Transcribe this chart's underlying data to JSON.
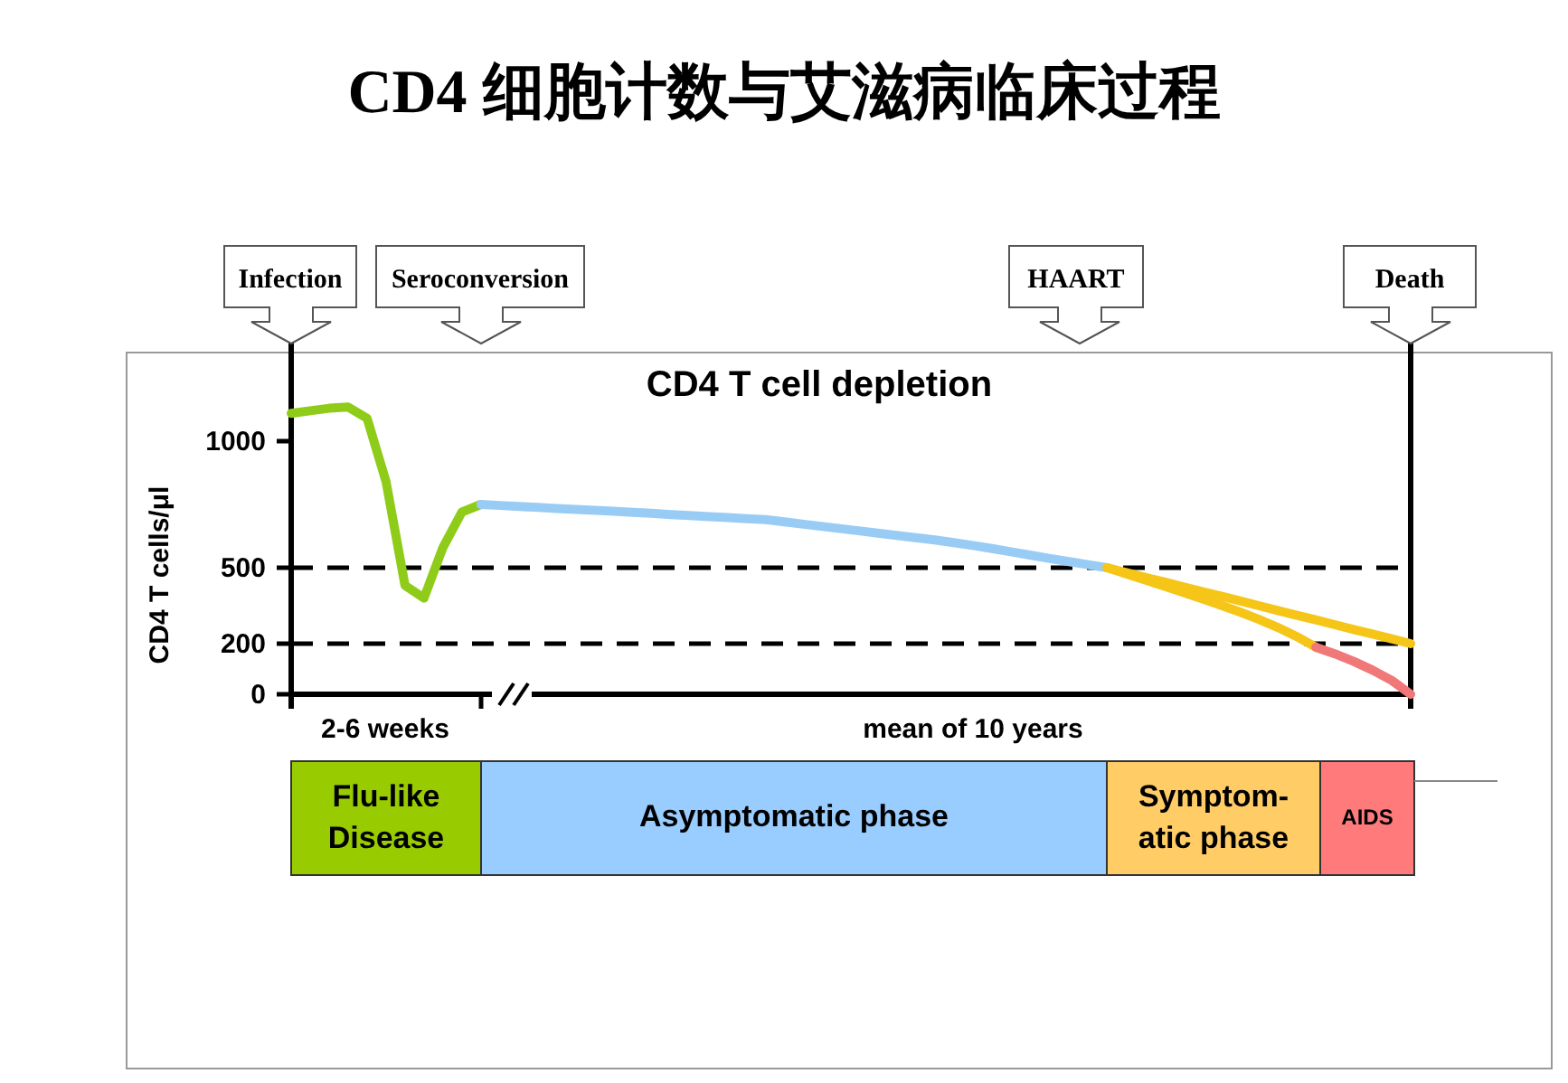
{
  "chart_data": {
    "type": "line",
    "title": "CD4 细胞计数与艾滋病临床过程",
    "subtitle": "CD4 T cell depletion",
    "ylabel": "CD4 T cells/μl",
    "categories": [
      null,
      null,
      null,
      null,
      null,
      null,
      null,
      null,
      null,
      null,
      null,
      null,
      null,
      null,
      null,
      null,
      null,
      null,
      null,
      null,
      null,
      null,
      null,
      null,
      null,
      null,
      null,
      null,
      null,
      null,
      null,
      null,
      null,
      null,
      null,
      null,
      null,
      null,
      null,
      null,
      null,
      null,
      null,
      null,
      null,
      null,
      null,
      null,
      null,
      null,
      null,
      null,
      null,
      null,
      null,
      null,
      null,
      null,
      null,
      null
    ],
    "ylim": [
      0,
      1350
    ],
    "yticks": [
      0,
      200,
      500,
      1000
    ],
    "grid": false,
    "marker": "none",
    "line_style": "solid",
    "tick_labels": "y",
    "series": [
      {
        "color": "#8fcc1a",
        "values": [
          1110,
          1120,
          1130,
          1135,
          1090,
          840,
          430,
          380,
          580,
          720,
          750,
          null,
          null,
          null,
          null,
          null,
          null,
          null,
          null,
          null,
          null,
          null,
          null,
          null,
          null,
          null,
          null,
          null,
          null,
          null,
          null,
          null,
          null,
          null,
          null,
          null,
          null,
          null,
          null,
          null,
          null,
          null,
          null,
          null,
          null,
          null,
          null,
          null,
          null,
          null,
          null,
          null,
          null,
          null,
          null,
          null,
          null,
          null,
          null,
          null
        ]
      },
      {
        "color": "#99ccf5",
        "values": [
          null,
          null,
          null,
          null,
          null,
          null,
          null,
          null,
          null,
          null,
          750,
          746,
          742,
          738,
          734,
          730,
          727,
          723,
          719,
          715,
          710,
          706,
          702,
          698,
          694,
          690,
          681,
          672,
          663,
          654,
          645,
          636,
          627,
          618,
          609,
          598,
          587,
          575,
          562,
          549,
          536,
          524,
          512,
          500,
          null,
          null,
          null,
          null,
          null,
          null,
          null,
          null,
          null,
          null,
          null,
          null,
          null,
          null,
          null,
          null
        ]
      },
      {
        "color": "#f5c518",
        "values": [
          null,
          null,
          null,
          null,
          null,
          null,
          null,
          null,
          null,
          null,
          null,
          null,
          null,
          null,
          null,
          null,
          null,
          null,
          null,
          null,
          null,
          null,
          null,
          null,
          null,
          null,
          null,
          null,
          null,
          null,
          null,
          null,
          null,
          null,
          null,
          null,
          null,
          null,
          null,
          null,
          null,
          null,
          null,
          500,
          481,
          462,
          444,
          425,
          406,
          388,
          369,
          350,
          331,
          312,
          294,
          275,
          256,
          238,
          219,
          200
        ]
      },
      {
        "color": "#f5c518",
        "values": [
          null,
          null,
          null,
          null,
          null,
          null,
          null,
          null,
          null,
          null,
          null,
          null,
          null,
          null,
          null,
          null,
          null,
          null,
          null,
          null,
          null,
          null,
          null,
          null,
          null,
          null,
          null,
          null,
          null,
          null,
          null,
          null,
          null,
          null,
          null,
          null,
          null,
          null,
          null,
          null,
          null,
          null,
          null,
          500,
          476,
          452,
          428,
          403,
          378,
          352,
          325,
          296,
          264,
          228,
          186,
          null,
          null,
          null,
          null,
          null
        ]
      },
      {
        "color": "#f07878",
        "values": [
          null,
          null,
          null,
          null,
          null,
          null,
          null,
          null,
          null,
          null,
          null,
          null,
          null,
          null,
          null,
          null,
          null,
          null,
          null,
          null,
          null,
          null,
          null,
          null,
          null,
          null,
          null,
          null,
          null,
          null,
          null,
          null,
          null,
          null,
          null,
          null,
          null,
          null,
          null,
          null,
          null,
          null,
          null,
          null,
          null,
          null,
          null,
          null,
          null,
          null,
          null,
          null,
          null,
          null,
          186,
          160,
          130,
          95,
          55,
          0
        ]
      }
    ],
    "ref_lines": [
      {
        "axis": "y",
        "value": 500,
        "line_style": "dashed",
        "color": "#000000"
      },
      {
        "axis": "y",
        "value": 200,
        "line_style": "dashed",
        "color": "#000000"
      }
    ],
    "annotations": [
      "Infection",
      "Seroconversion",
      "HAART",
      "Death",
      "2-6 weeks",
      "mean of 10 years",
      "Flu-like Disease",
      "Asymptomatic phase",
      "Symptom-atic phase",
      "AIDS"
    ]
  }
}
